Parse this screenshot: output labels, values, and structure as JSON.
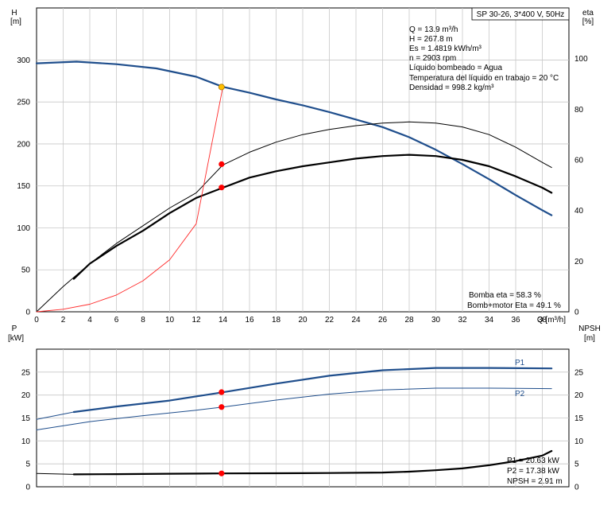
{
  "chart_data": [
    {
      "type": "line",
      "title": "SP 30-26, 3*400 V, 50Hz",
      "xlabel": "Q [m³/h]",
      "ylabel_left": [
        "H",
        "[m]"
      ],
      "ylabel_right": [
        "eta",
        "[%]"
      ],
      "xlim": [
        0,
        40
      ],
      "xticks": [
        "0",
        "2",
        "4",
        "6",
        "8",
        "10",
        "12",
        "14",
        "16",
        "18",
        "20",
        "22",
        "24",
        "26",
        "28",
        "30",
        "32",
        "34",
        "36",
        "38"
      ],
      "ylim_left": [
        0,
        362
      ],
      "yticks_left": [
        "0",
        "50",
        "100",
        "150",
        "200",
        "250",
        "300"
      ],
      "ylim_right": [
        0,
        120
      ],
      "yticks_right": [
        "0",
        "20",
        "40",
        "60",
        "80",
        "100"
      ],
      "grid": true,
      "series": [
        {
          "axis": "left",
          "color": "#1f4e8c",
          "width": 2.2,
          "x": [
            0,
            3,
            6,
            9,
            12,
            14,
            16,
            18,
            20,
            22,
            24,
            26,
            28,
            30,
            32,
            34,
            36,
            38,
            38.7
          ],
          "y": [
            296,
            298,
            295,
            290,
            280,
            268,
            261,
            253,
            246,
            238,
            229,
            220,
            208,
            193,
            176,
            158,
            139,
            121,
            115
          ]
        },
        {
          "axis": "right",
          "color": "#000000",
          "width": 1,
          "x": [
            0,
            2,
            4,
            6,
            8,
            10,
            12,
            14,
            16,
            18,
            20,
            22,
            24,
            26,
            28,
            30,
            32,
            34,
            36,
            38,
            38.7
          ],
          "y": [
            0,
            10,
            19,
            27,
            34,
            41,
            47,
            58,
            63,
            67,
            70,
            72,
            73.5,
            74.5,
            75,
            74.5,
            73,
            70,
            65,
            59,
            57
          ]
        },
        {
          "axis": "right",
          "color": "#000000",
          "width": 2.2,
          "x": [
            2.8,
            4,
            6,
            8,
            10,
            12,
            14,
            16,
            18,
            20,
            22,
            24,
            26,
            28,
            30,
            32,
            34,
            36,
            38,
            38.7
          ],
          "y": [
            13,
            19,
            26,
            32,
            39,
            45,
            49,
            53,
            55.5,
            57.5,
            59,
            60.5,
            61.5,
            62,
            61.5,
            60,
            57.5,
            53.5,
            49,
            47
          ]
        },
        {
          "axis": "left",
          "color": "#ff2a2a",
          "width": 0.9,
          "x": [
            0,
            2,
            4,
            6,
            8,
            10,
            12,
            14
          ],
          "y": [
            0,
            3,
            9,
            20,
            37,
            62,
            105,
            268
          ]
        }
      ],
      "points": [
        {
          "axis": "left",
          "x": 13.9,
          "y": 267.8,
          "color": "#ffbf00"
        },
        {
          "axis": "right",
          "x": 13.9,
          "y": 58.3,
          "color": "#ff0000"
        },
        {
          "axis": "right",
          "x": 13.9,
          "y": 49.1,
          "color": "#ff0000"
        }
      ],
      "info": [
        "Q = 13.9 m³/h",
        "H = 267.8 m",
        "Es = 1.4819 kWh/m³",
        "n = 2903 rpm",
        "Líquido bombeado = Agua",
        "Temperatura del líquido en trabajo = 20 °C",
        "Densidad = 998.2 kg/m³"
      ],
      "footer": [
        "Bomba eta = 58.3 %",
        "Bomb+motor Eta = 49.1 %"
      ]
    },
    {
      "type": "line",
      "ylabel_left": [
        "P",
        "[kW]"
      ],
      "ylabel_right": [
        "NPSH",
        "[m]"
      ],
      "xlim": [
        0,
        40
      ],
      "ylim_left": [
        0,
        30
      ],
      "yticks_left": [
        "0",
        "5",
        "10",
        "15",
        "20",
        "25"
      ],
      "ylim_right": [
        0,
        30
      ],
      "yticks_right": [
        "0",
        "5",
        "10",
        "15",
        "20",
        "25"
      ],
      "grid": true,
      "series": [
        {
          "name": "P1",
          "axis": "left",
          "color": "#1f4e8c",
          "width": 2.2,
          "x": [
            2.8,
            6,
            10,
            14,
            18,
            22,
            26,
            30,
            34,
            38.7
          ],
          "y": [
            16.3,
            17.5,
            18.8,
            20.6,
            22.5,
            24.2,
            25.4,
            25.9,
            25.9,
            25.8
          ]
        },
        {
          "axis": "left",
          "color": "#1f4e8c",
          "width": 1,
          "x": [
            0,
            2.8
          ],
          "y": [
            14.7,
            16.3
          ]
        },
        {
          "name": "P2",
          "axis": "left",
          "color": "#1f4e8c",
          "width": 1,
          "x": [
            0,
            4,
            8,
            12,
            14,
            18,
            22,
            26,
            30,
            34,
            38.7
          ],
          "y": [
            12.4,
            14.2,
            15.5,
            16.7,
            17.4,
            18.9,
            20.2,
            21.1,
            21.5,
            21.5,
            21.4
          ]
        },
        {
          "axis": "right",
          "color": "#000000",
          "width": 2.2,
          "x": [
            2.8,
            6,
            10,
            14,
            18,
            22,
            26,
            28,
            30,
            32,
            34,
            36,
            38,
            38.7
          ],
          "y": [
            2.7,
            2.75,
            2.85,
            2.91,
            2.95,
            3.0,
            3.1,
            3.3,
            3.6,
            4.0,
            4.7,
            5.6,
            6.8,
            7.8
          ]
        },
        {
          "axis": "right",
          "color": "#000000",
          "width": 1,
          "x": [
            0,
            2.8
          ],
          "y": [
            2.9,
            2.7
          ]
        }
      ],
      "points": [
        {
          "axis": "left",
          "x": 13.9,
          "y": 20.63,
          "color": "#ff0000"
        },
        {
          "axis": "left",
          "x": 13.9,
          "y": 17.38,
          "color": "#ff0000"
        },
        {
          "axis": "right",
          "x": 13.9,
          "y": 2.91,
          "color": "#ff0000"
        }
      ],
      "footer": [
        "P1 = 20.63 kW",
        "P2 = 17.38 kW",
        "NPSH = 2.91 m"
      ]
    }
  ]
}
